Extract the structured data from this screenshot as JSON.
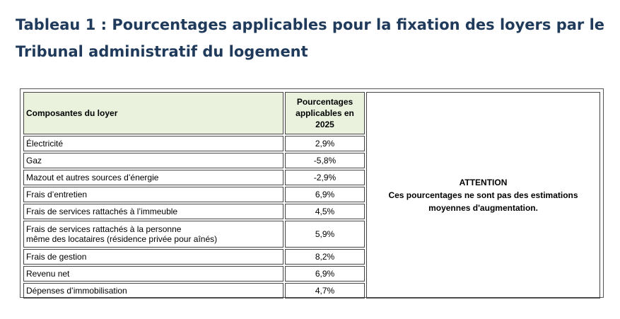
{
  "title": "Tableau 1 : Pourcentages applicables pour la fixation des loyers par le Tribunal administratif du logement",
  "table": {
    "headers": {
      "component": "Composantes du loyer",
      "percentage": "Pourcentages applicables en 2025"
    },
    "rows": [
      {
        "component": "Électricité",
        "value": "2,9%"
      },
      {
        "component": "Gaz",
        "value": "-5,8%"
      },
      {
        "component": "Mazout et autres sources d’énergie",
        "value": "-2,9%"
      },
      {
        "component": "Frais d’entretien",
        "value": "6,9%"
      },
      {
        "component": "Frais de services rattachés à l’immeuble",
        "value": "4,5%"
      },
      {
        "component": "Frais de services rattachés à la personne même des locataires (résidence privée pour aînés)",
        "component_line1": "Frais de services rattachés à la personne",
        "component_line2": "même des locataires (résidence privée pour aînés)",
        "value": "5,9%"
      },
      {
        "component": "Frais de gestion",
        "value": "8,2%"
      },
      {
        "component": "Revenu net",
        "value": "6,9%"
      },
      {
        "component": "Dépenses d’immobilisation",
        "value": "4,7%"
      }
    ],
    "note": {
      "heading": "ATTENTION",
      "line1": "Ces pourcentages ne sont pas des estimations",
      "line2": "moyennes d'augmentation."
    },
    "header_color": "#eaf1dd"
  }
}
